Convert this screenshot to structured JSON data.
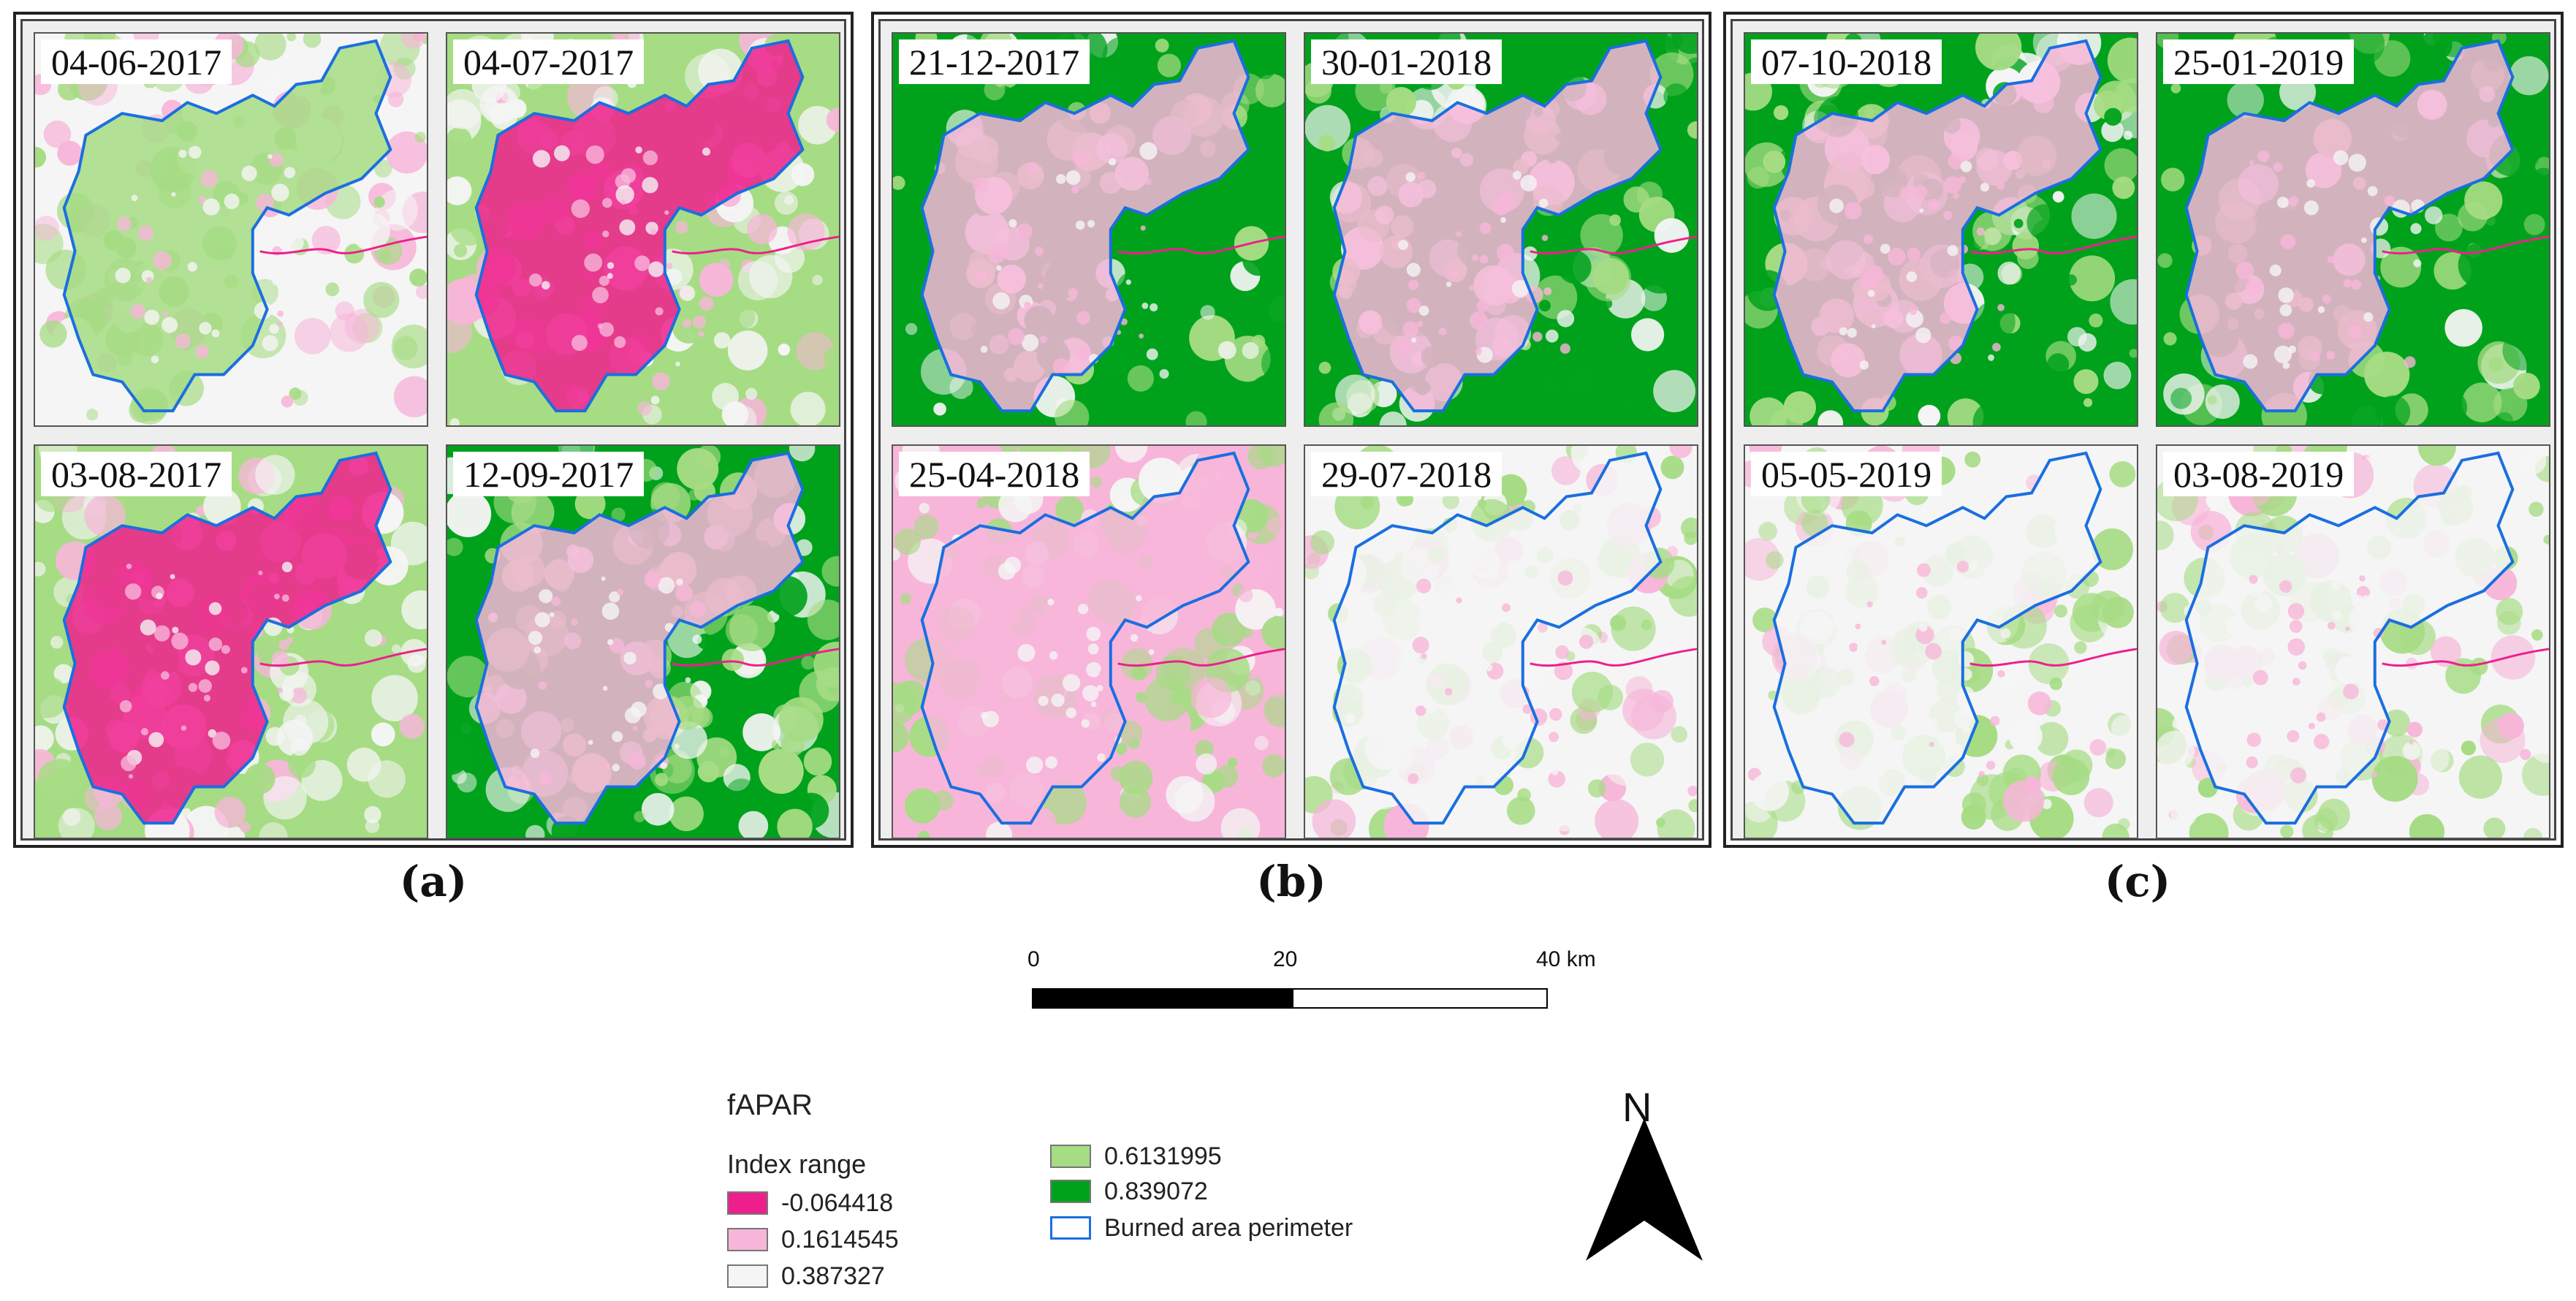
{
  "panels": [
    {
      "label": "(a)",
      "dates": [
        "04-06-2017",
        "04-07-2017",
        "03-08-2017",
        "12-09-2017"
      ],
      "themes": [
        "lightgreen",
        "pinkburn",
        "pinkburn",
        "greenmix"
      ]
    },
    {
      "label": "(b)",
      "dates": [
        "21-12-2017",
        "30-01-2018",
        "25-04-2018",
        "29-07-2018"
      ],
      "themes": [
        "darkgreen",
        "darkgreen",
        "pinkheavy",
        "lightmix"
      ]
    },
    {
      "label": "(c)",
      "dates": [
        "07-10-2018",
        "25-01-2019",
        "05-05-2019",
        "03-08-2019"
      ],
      "themes": [
        "greenmix",
        "darkgreen",
        "lightmix",
        "lightmix"
      ]
    }
  ],
  "scalebar": {
    "ticks": [
      "0",
      "20",
      "40 km"
    ]
  },
  "legend": {
    "title": "fAPAR",
    "subtitle": "Index range",
    "items": [
      {
        "label": "-0.064418",
        "color": "#ee1f8c"
      },
      {
        "label": "0.1614545",
        "color": "#f7b6d9"
      },
      {
        "label": "0.387327",
        "color": "#f5f5f5"
      },
      {
        "label": "0.6131995",
        "color": "#a6dc84"
      },
      {
        "label": "0.839072",
        "color": "#00a21c"
      },
      {
        "label": "Burned area perimeter",
        "color": "#1a6fe0"
      }
    ]
  },
  "north": {
    "label": "N"
  },
  "colors": {
    "perimeter": "#1a6fe0",
    "magenta": "#ee1f8c",
    "pink": "#f7b6d9",
    "white": "#f5f5f5",
    "lightgreen": "#a6dc84",
    "darkgreen": "#00a21c"
  }
}
